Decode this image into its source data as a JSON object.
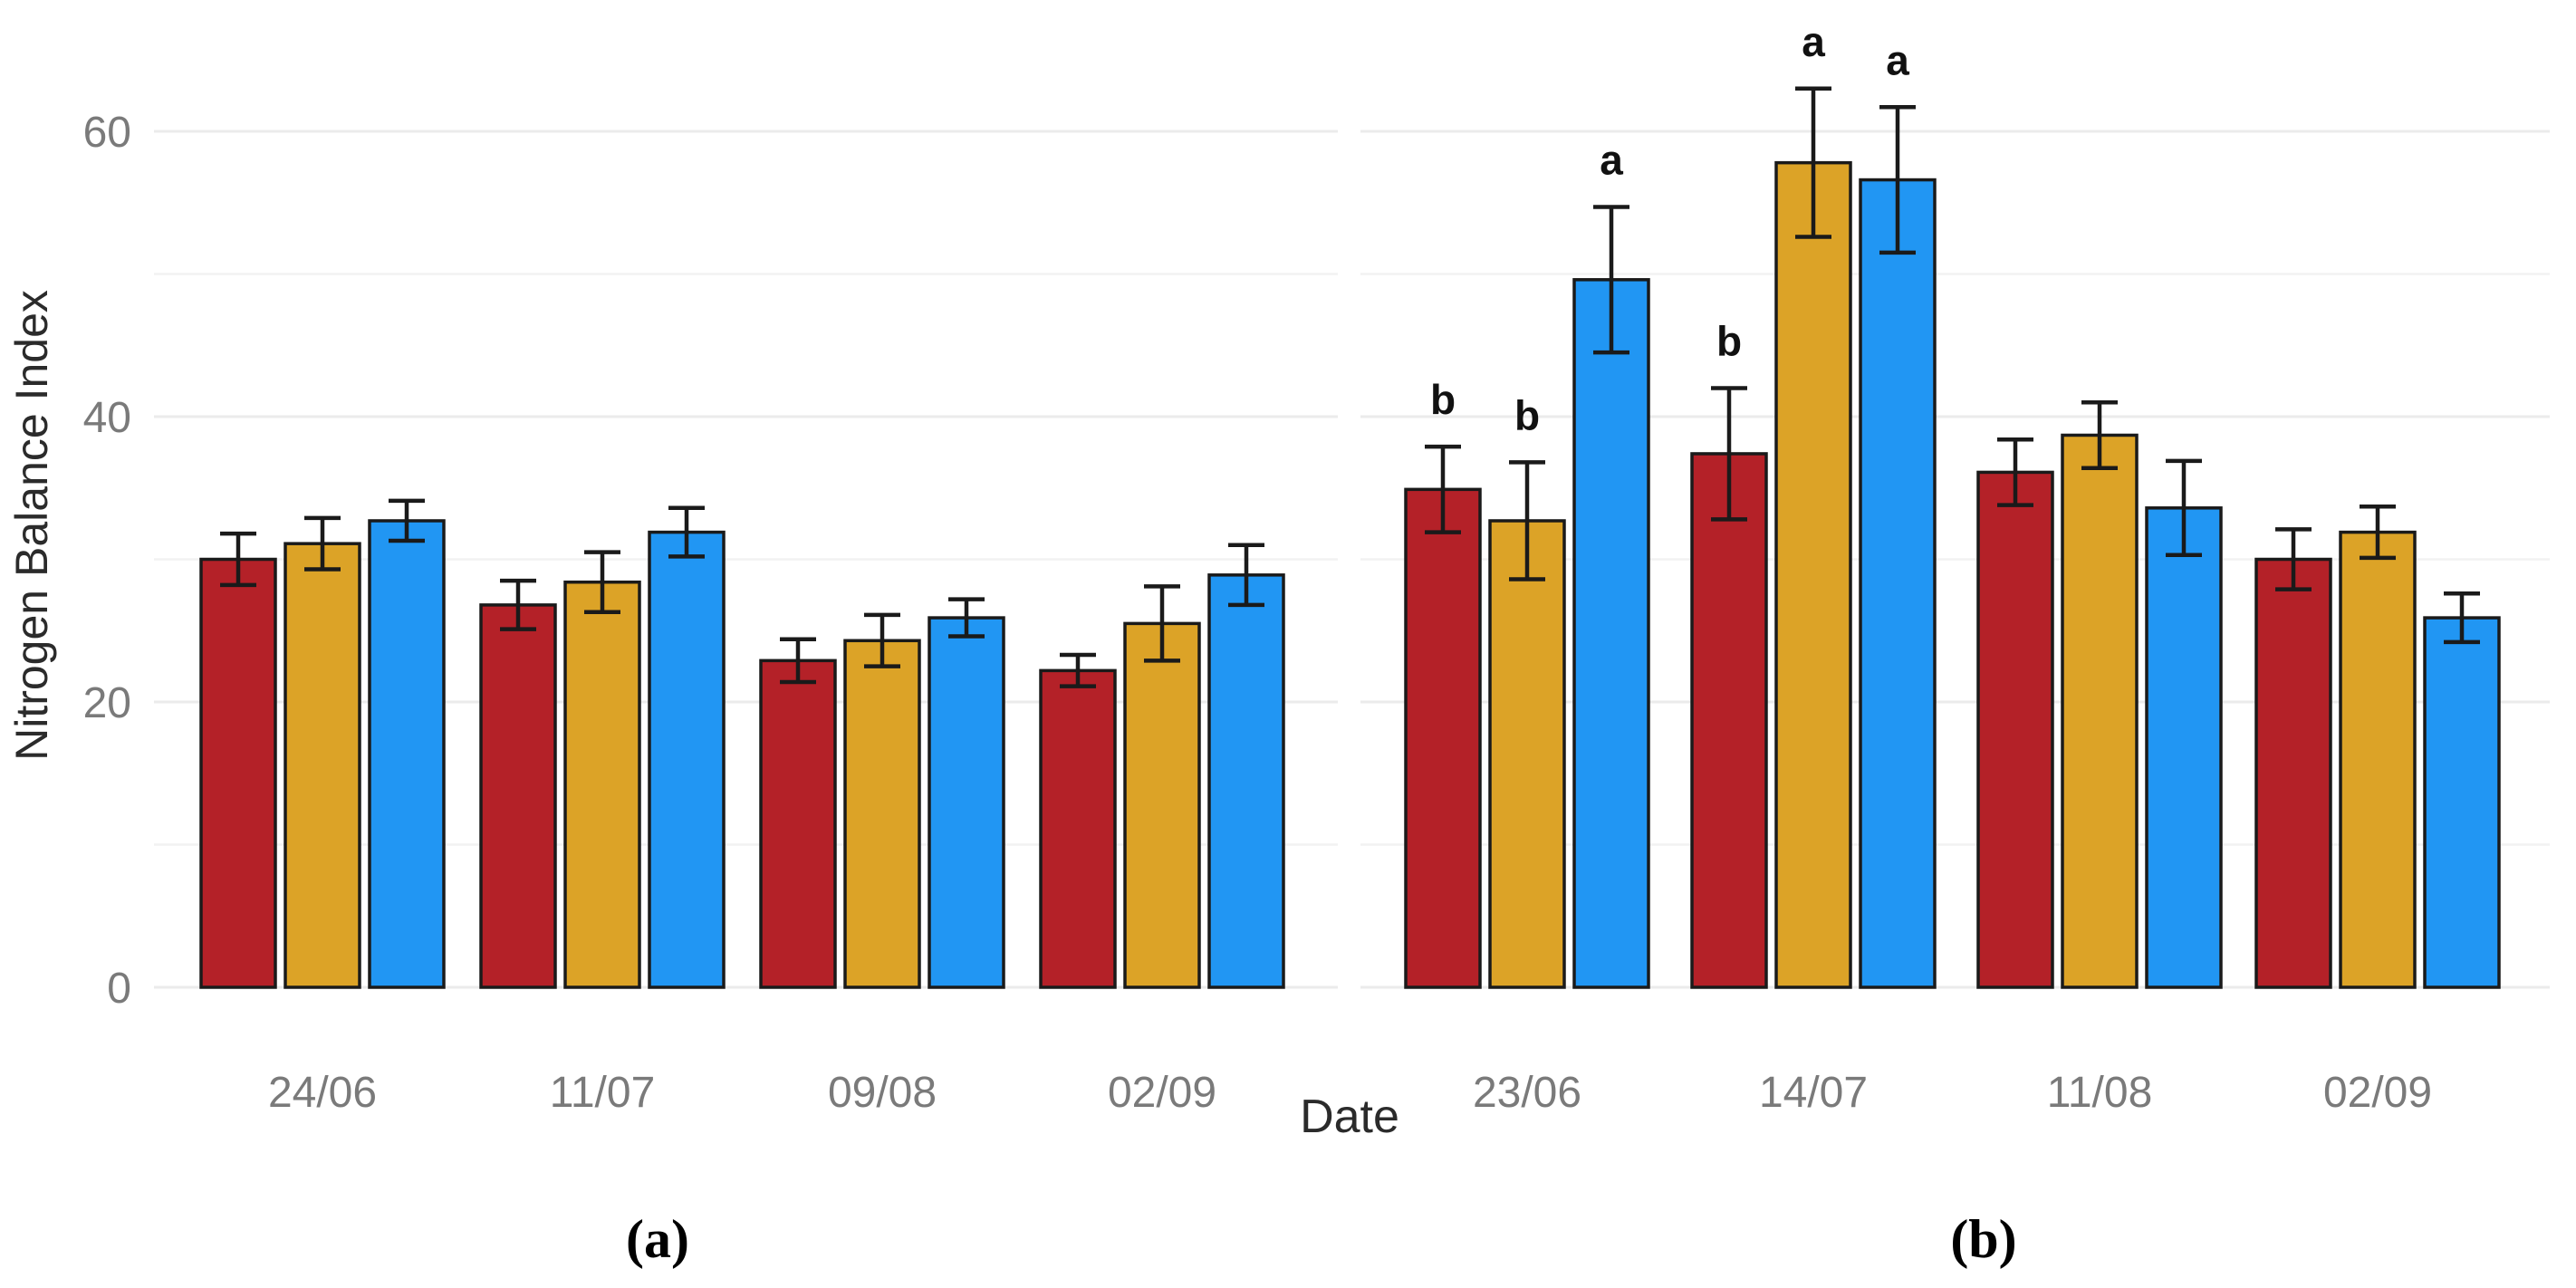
{
  "figure": {
    "ylabel": "Nitrogen Balance Index",
    "xlabel": "Date",
    "background": "#FFFFFF"
  },
  "colors": {
    "red": "#B42128",
    "gold": "#DCA327",
    "blue": "#2196F3",
    "bar_outline": "#1A1A1A",
    "error_bar": "#1A1A1A",
    "grid_major": "#EBEBEB",
    "grid_minor": "#F2F2F2",
    "tick_text": "#7A7A7A",
    "axis_text": "#2B2B2B",
    "letter_text": "#111111"
  },
  "chart_data": [
    {
      "type": "bar",
      "panel": "a",
      "caption": "(a)",
      "title": "",
      "xlabel": "Date",
      "ylabel": "Nitrogen Balance Index",
      "categories": [
        "24/06",
        "11/07",
        "09/08",
        "02/09"
      ],
      "ylim": [
        0,
        65
      ],
      "yticks": [
        0,
        20,
        40,
        60
      ],
      "minor_gridlines": [
        10,
        30,
        50
      ],
      "grid": true,
      "legend": "none",
      "series": [
        {
          "name": "red",
          "color": "#B42128",
          "values": [
            30.0,
            26.8,
            22.9,
            22.2
          ],
          "errors": [
            1.8,
            1.7,
            1.5,
            1.1
          ],
          "letters": [
            "",
            "",
            "",
            ""
          ]
        },
        {
          "name": "gold",
          "color": "#DCA327",
          "values": [
            31.1,
            28.4,
            24.3,
            25.5
          ],
          "errors": [
            1.8,
            2.1,
            1.8,
            2.6
          ],
          "letters": [
            "",
            "",
            "",
            ""
          ]
        },
        {
          "name": "blue",
          "color": "#2196F3",
          "values": [
            32.7,
            31.9,
            25.9,
            28.9
          ],
          "errors": [
            1.4,
            1.7,
            1.3,
            2.1
          ],
          "letters": [
            "",
            "",
            "",
            ""
          ]
        }
      ]
    },
    {
      "type": "bar",
      "panel": "b",
      "caption": "(b)",
      "title": "",
      "xlabel": "Date",
      "ylabel": "Nitrogen Balance Index",
      "categories": [
        "23/06",
        "14/07",
        "11/08",
        "02/09"
      ],
      "ylim": [
        0,
        65
      ],
      "yticks": [
        0,
        20,
        40,
        60
      ],
      "minor_gridlines": [
        10,
        30,
        50
      ],
      "grid": true,
      "legend": "none",
      "series": [
        {
          "name": "red",
          "color": "#B42128",
          "values": [
            34.9,
            37.4,
            36.1,
            30.0
          ],
          "errors": [
            3.0,
            4.6,
            2.3,
            2.1
          ],
          "letters": [
            "b",
            "b",
            "",
            ""
          ]
        },
        {
          "name": "gold",
          "color": "#DCA327",
          "values": [
            32.7,
            57.8,
            38.7,
            31.9
          ],
          "errors": [
            4.1,
            5.2,
            2.3,
            1.8
          ],
          "letters": [
            "b",
            "a",
            "",
            ""
          ]
        },
        {
          "name": "blue",
          "color": "#2196F3",
          "values": [
            49.6,
            56.6,
            33.6,
            25.9
          ],
          "errors": [
            5.1,
            5.1,
            3.3,
            1.7
          ],
          "letters": [
            "a",
            "a",
            "",
            ""
          ]
        }
      ]
    }
  ]
}
